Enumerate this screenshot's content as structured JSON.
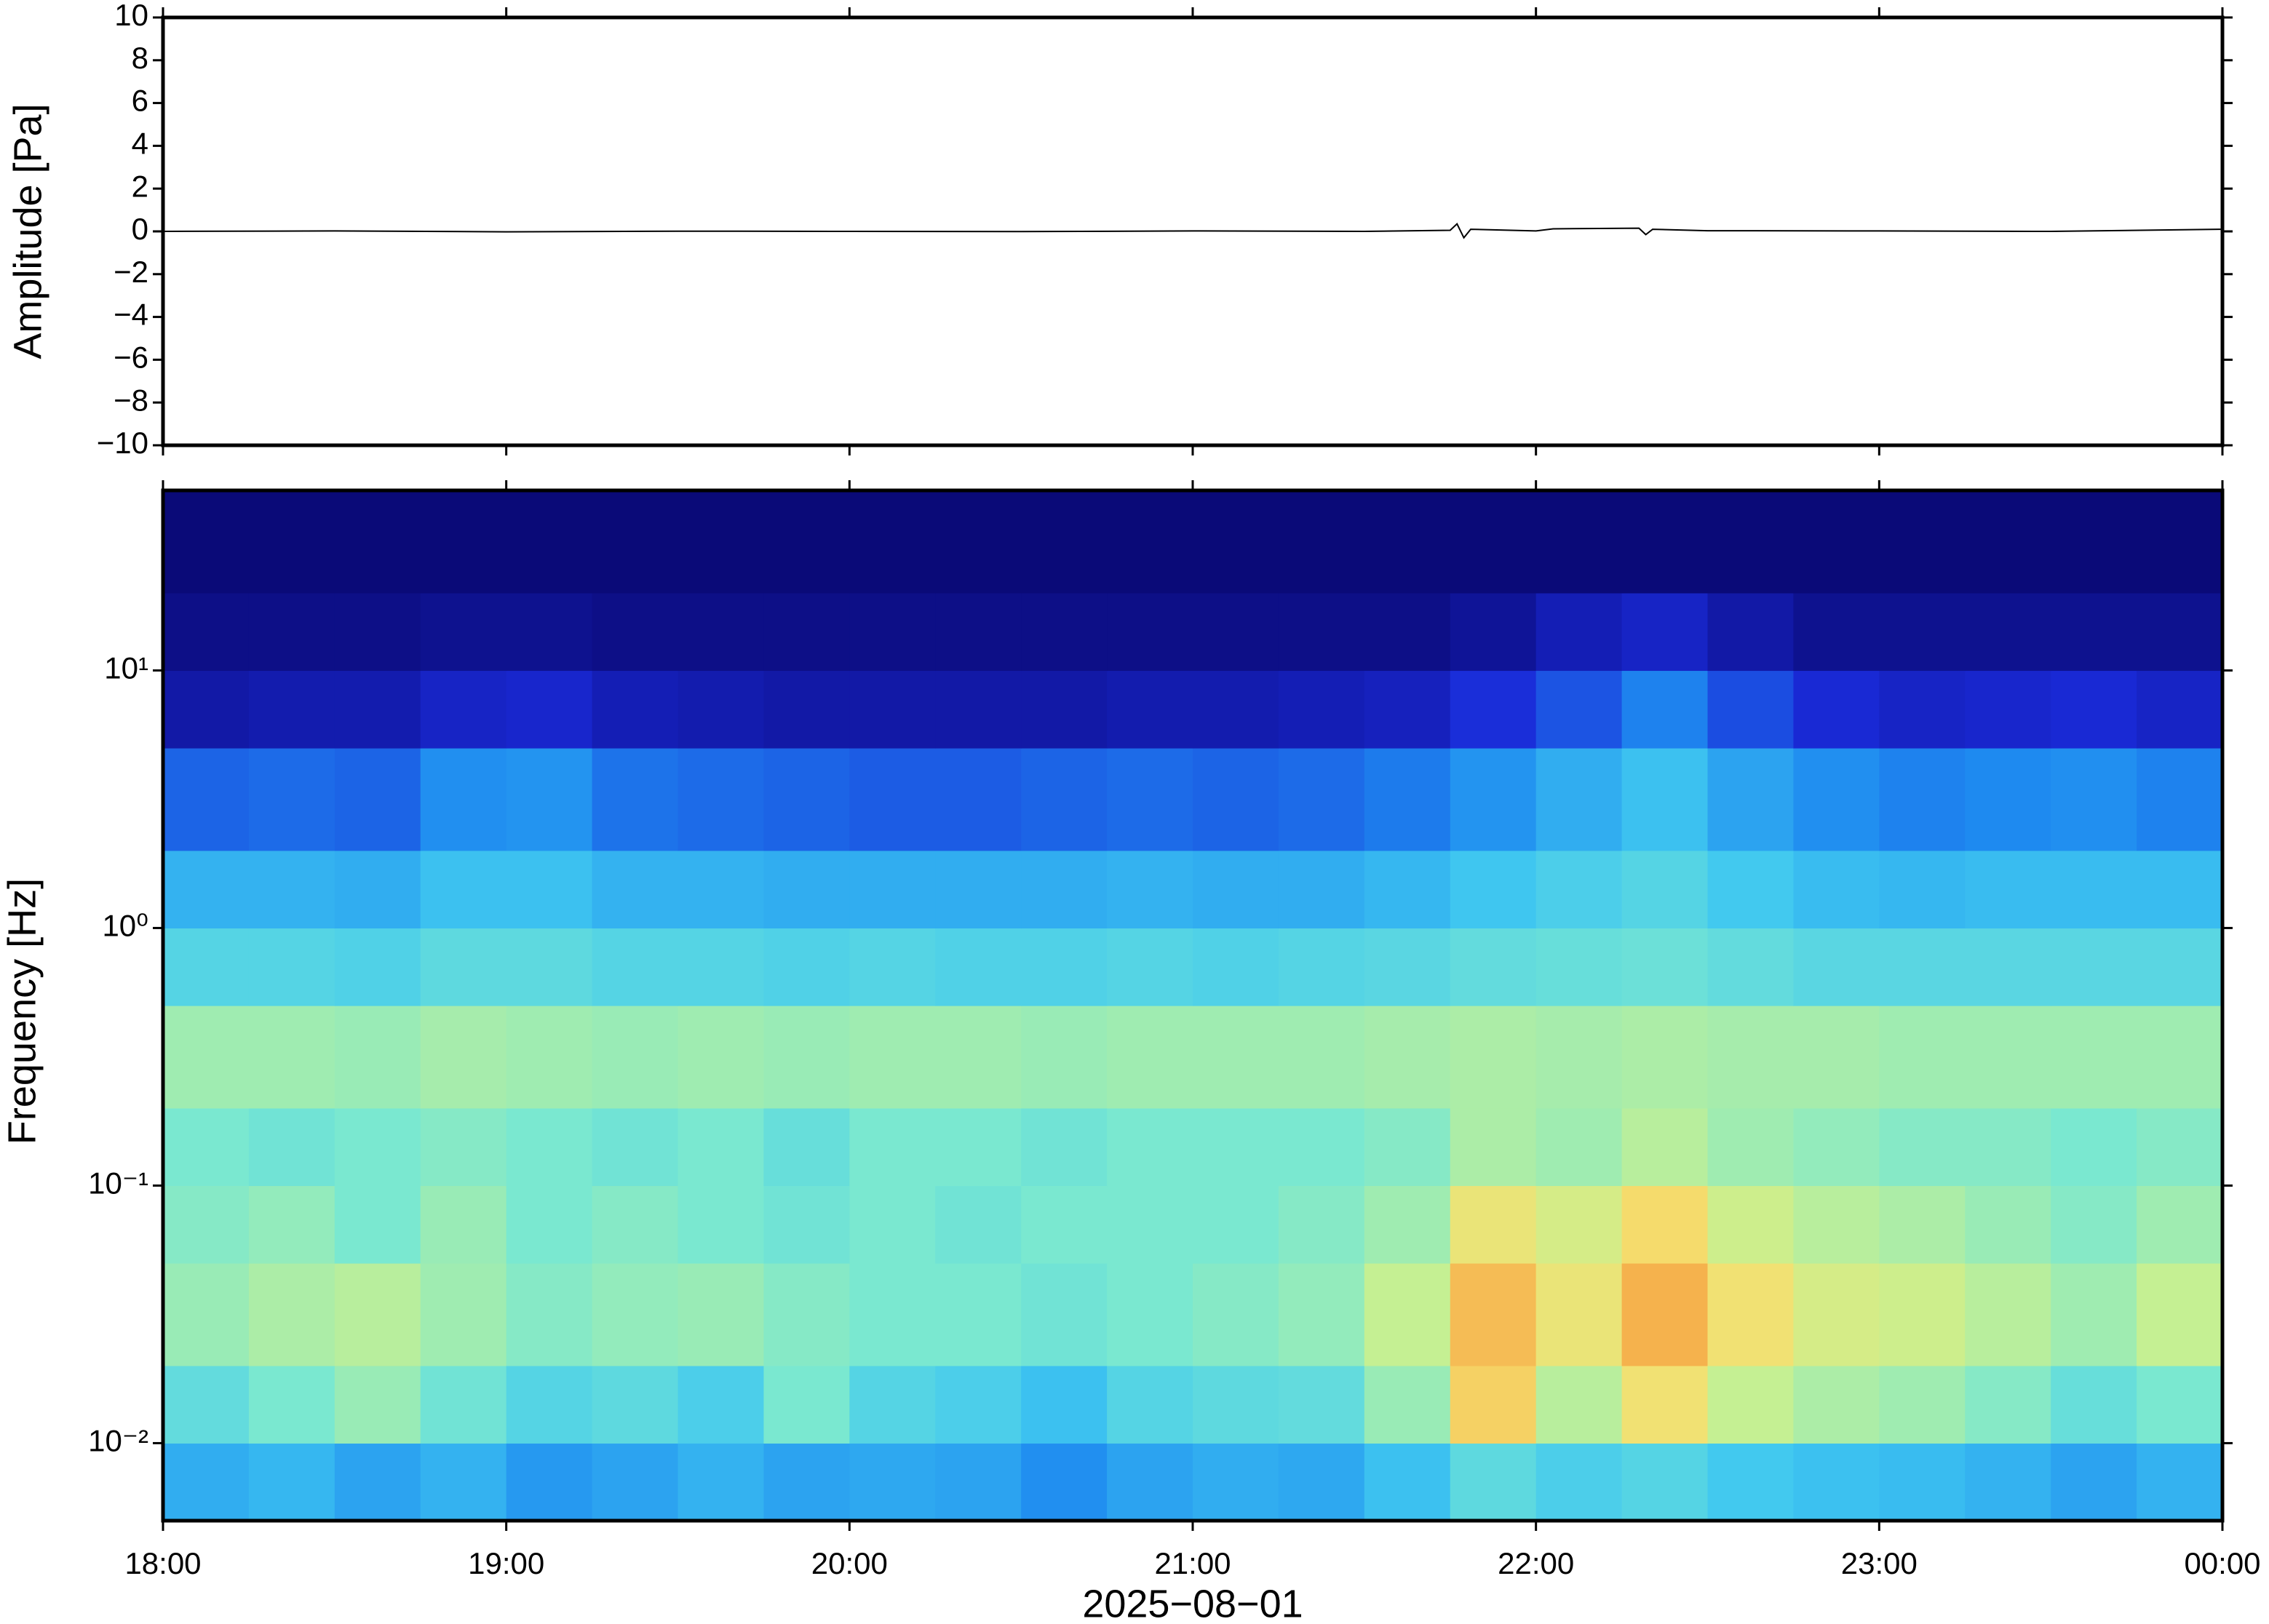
{
  "chart_data": [
    {
      "type": "line",
      "ylabel": "Amplitude [Pa]",
      "x": [
        18,
        18.5,
        19,
        19.5,
        20,
        20.5,
        21,
        21.5,
        21.75,
        21.77,
        21.79,
        21.81,
        22,
        22.05,
        22.3,
        22.32,
        22.34,
        22.5,
        23,
        23.5,
        24
      ],
      "series": [
        {
          "color": "#000000",
          "values": [
            0,
            0.02,
            -0.02,
            0.01,
            0,
            -0.01,
            0.02,
            0,
            0.05,
            0.35,
            -0.3,
            0.1,
            0.02,
            0.12,
            0.15,
            -0.15,
            0.1,
            0.03,
            0.02,
            0,
            0.1
          ]
        }
      ],
      "xlim": [
        18,
        24
      ],
      "ylim": [
        -10,
        10
      ],
      "yticks": [
        {
          "value": -10,
          "label": "−10"
        },
        {
          "value": -8,
          "label": "−8"
        },
        {
          "value": -6,
          "label": "−6"
        },
        {
          "value": -4,
          "label": "−4"
        },
        {
          "value": -2,
          "label": "−2"
        },
        0,
        2,
        4,
        6,
        8,
        10
      ]
    },
    {
      "type": "heatmap",
      "ylabel": "Frequency [Hz]",
      "xlabel": "2025−08−01",
      "xlim": [
        18,
        24
      ],
      "xticks": [
        {
          "value": 18,
          "label": "18:00"
        },
        {
          "value": 19,
          "label": "19:00"
        },
        {
          "value": 20,
          "label": "20:00"
        },
        {
          "value": 21,
          "label": "21:00"
        },
        {
          "value": 22,
          "label": "22:00"
        },
        {
          "value": 23,
          "label": "23:00"
        },
        {
          "value": 24,
          "label": "00:00"
        }
      ],
      "ylim": [
        0.005,
        50
      ],
      "log_y": true,
      "yticks": [
        {
          "value": 0.01,
          "label": "10⁻²"
        },
        {
          "value": 0.1,
          "label": "10⁻¹"
        },
        {
          "value": 1,
          "label": "10⁰"
        },
        {
          "value": 10,
          "label": "10¹"
        }
      ],
      "x_bins": [
        18,
        18.25,
        18.5,
        18.75,
        19,
        19.25,
        19.5,
        19.75,
        20,
        20.25,
        20.5,
        20.75,
        21,
        21.25,
        21.5,
        21.75,
        22,
        22.25,
        22.5,
        22.75,
        23,
        23.25,
        23.5,
        23.75,
        24
      ],
      "y_bins": [
        0.005,
        0.01,
        0.02,
        0.05,
        0.1,
        0.2,
        0.5,
        1,
        2,
        5,
        10,
        20,
        50
      ],
      "zlim": [
        0,
        1
      ],
      "colormap": [
        "#0a0a78",
        "#1a2ad8",
        "#1e8af0",
        "#40c8f0",
        "#7ae8d0",
        "#c8f090",
        "#f5e070",
        "#f5a040",
        "#e86030"
      ],
      "z": [
        [
          0.32,
          0.34,
          0.3,
          0.33,
          0.28,
          0.3,
          0.33,
          0.3,
          0.31,
          0.3,
          0.26,
          0.3,
          0.32,
          0.31,
          0.36,
          0.44,
          0.4,
          0.42,
          0.38,
          0.36,
          0.35,
          0.33,
          0.3,
          0.33
        ],
        [
          0.45,
          0.5,
          0.55,
          0.48,
          0.42,
          0.44,
          0.4,
          0.5,
          0.42,
          0.4,
          0.36,
          0.42,
          0.44,
          0.45,
          0.55,
          0.78,
          0.6,
          0.74,
          0.62,
          0.58,
          0.56,
          0.52,
          0.46,
          0.5
        ],
        [
          0.55,
          0.58,
          0.6,
          0.56,
          0.52,
          0.54,
          0.55,
          0.52,
          0.5,
          0.5,
          0.48,
          0.5,
          0.52,
          0.54,
          0.62,
          0.82,
          0.72,
          0.84,
          0.74,
          0.66,
          0.64,
          0.6,
          0.56,
          0.62
        ],
        [
          0.52,
          0.54,
          0.5,
          0.55,
          0.5,
          0.52,
          0.5,
          0.48,
          0.5,
          0.48,
          0.5,
          0.5,
          0.5,
          0.52,
          0.56,
          0.72,
          0.66,
          0.76,
          0.64,
          0.6,
          0.58,
          0.55,
          0.52,
          0.56
        ],
        [
          0.5,
          0.48,
          0.5,
          0.52,
          0.5,
          0.48,
          0.5,
          0.46,
          0.5,
          0.5,
          0.48,
          0.5,
          0.5,
          0.5,
          0.52,
          0.58,
          0.56,
          0.6,
          0.56,
          0.54,
          0.52,
          0.52,
          0.5,
          0.52
        ],
        [
          0.56,
          0.56,
          0.55,
          0.57,
          0.56,
          0.55,
          0.56,
          0.55,
          0.56,
          0.56,
          0.55,
          0.56,
          0.56,
          0.56,
          0.57,
          0.58,
          0.57,
          0.58,
          0.57,
          0.57,
          0.56,
          0.56,
          0.56,
          0.56
        ],
        [
          0.42,
          0.42,
          0.41,
          0.44,
          0.44,
          0.42,
          0.42,
          0.41,
          0.42,
          0.41,
          0.41,
          0.42,
          0.41,
          0.42,
          0.43,
          0.45,
          0.46,
          0.47,
          0.45,
          0.43,
          0.43,
          0.43,
          0.43,
          0.43
        ],
        [
          0.33,
          0.33,
          0.32,
          0.36,
          0.36,
          0.33,
          0.33,
          0.32,
          0.32,
          0.32,
          0.32,
          0.33,
          0.32,
          0.32,
          0.34,
          0.37,
          0.4,
          0.42,
          0.38,
          0.35,
          0.34,
          0.35,
          0.35,
          0.35
        ],
        [
          0.2,
          0.21,
          0.2,
          0.26,
          0.27,
          0.22,
          0.21,
          0.2,
          0.19,
          0.19,
          0.2,
          0.21,
          0.2,
          0.21,
          0.23,
          0.27,
          0.32,
          0.36,
          0.3,
          0.26,
          0.24,
          0.25,
          0.26,
          0.24
        ],
        [
          0.06,
          0.07,
          0.07,
          0.1,
          0.11,
          0.08,
          0.07,
          0.06,
          0.06,
          0.06,
          0.06,
          0.07,
          0.07,
          0.08,
          0.09,
          0.13,
          0.18,
          0.24,
          0.17,
          0.12,
          0.1,
          0.11,
          0.12,
          0.1
        ],
        [
          0.02,
          0.02,
          0.02,
          0.03,
          0.03,
          0.02,
          0.02,
          0.02,
          0.02,
          0.02,
          0.02,
          0.02,
          0.02,
          0.02,
          0.02,
          0.04,
          0.08,
          0.1,
          0.06,
          0.03,
          0.03,
          0.03,
          0.03,
          0.03
        ],
        [
          0,
          0,
          0,
          0,
          0,
          0,
          0,
          0,
          0,
          0,
          0,
          0,
          0,
          0,
          0,
          0,
          0,
          0,
          0,
          0,
          0,
          0,
          0,
          0
        ]
      ]
    }
  ]
}
